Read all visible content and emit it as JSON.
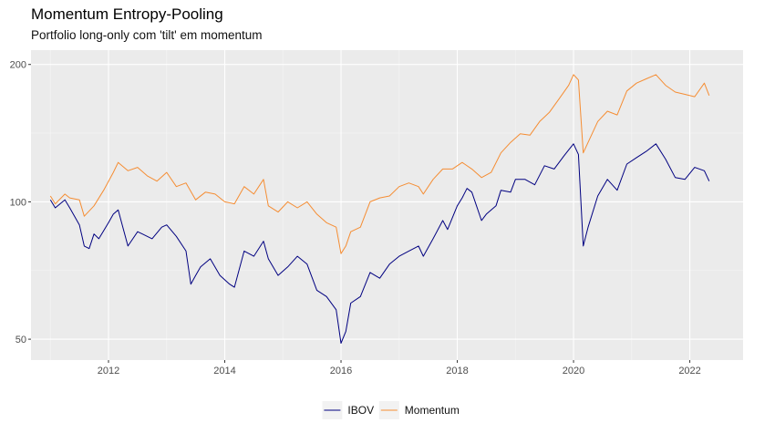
{
  "chart_data": {
    "type": "line",
    "title": "Momentum Entropy-Pooling",
    "subtitle": "Portfolio long-only com 'tilt' em momentum",
    "xlabel": "",
    "ylabel": "",
    "x_axis": {
      "type": "date",
      "range": [
        "2010-09",
        "2022-12"
      ],
      "ticks": [
        "2012",
        "2014",
        "2016",
        "2018",
        "2020",
        "2022"
      ]
    },
    "y_axis": {
      "scale": "log",
      "range": [
        45,
        215
      ],
      "ticks": [
        50,
        100,
        200
      ]
    },
    "grid": true,
    "legend": {
      "position": "bottom"
    },
    "series": [
      {
        "name": "IBOV",
        "color": "#000080",
        "points": [
          [
            "2011-01",
            101
          ],
          [
            "2011-02",
            97
          ],
          [
            "2011-04",
            101
          ],
          [
            "2011-05",
            97
          ],
          [
            "2011-07",
            89
          ],
          [
            "2011-08",
            80
          ],
          [
            "2011-09",
            79
          ],
          [
            "2011-10",
            85
          ],
          [
            "2011-11",
            83
          ],
          [
            "2012-01",
            90
          ],
          [
            "2012-02",
            94
          ],
          [
            "2012-03",
            96
          ],
          [
            "2012-05",
            80
          ],
          [
            "2012-07",
            86
          ],
          [
            "2012-08",
            85
          ],
          [
            "2012-10",
            83
          ],
          [
            "2012-12",
            88
          ],
          [
            "2013-01",
            89
          ],
          [
            "2013-03",
            84
          ],
          [
            "2013-05",
            78
          ],
          [
            "2013-06",
            66
          ],
          [
            "2013-07",
            69
          ],
          [
            "2013-08",
            72
          ],
          [
            "2013-10",
            75
          ],
          [
            "2013-12",
            69
          ],
          [
            "2014-02",
            66
          ],
          [
            "2014-03",
            65
          ],
          [
            "2014-05",
            78
          ],
          [
            "2014-07",
            76
          ],
          [
            "2014-09",
            82
          ],
          [
            "2014-10",
            75
          ],
          [
            "2014-12",
            69
          ],
          [
            "2015-02",
            72
          ],
          [
            "2015-04",
            76
          ],
          [
            "2015-06",
            73
          ],
          [
            "2015-08",
            64
          ],
          [
            "2015-10",
            62
          ],
          [
            "2015-12",
            58
          ],
          [
            "2016-01",
            49
          ],
          [
            "2016-02",
            52
          ],
          [
            "2016-03",
            60
          ],
          [
            "2016-05",
            62
          ],
          [
            "2016-07",
            70
          ],
          [
            "2016-09",
            68
          ],
          [
            "2016-11",
            73
          ],
          [
            "2017-01",
            76
          ],
          [
            "2017-03",
            78
          ],
          [
            "2017-05",
            80
          ],
          [
            "2017-06",
            76
          ],
          [
            "2017-08",
            83
          ],
          [
            "2017-10",
            91
          ],
          [
            "2017-11",
            87
          ],
          [
            "2018-01",
            98
          ],
          [
            "2018-02",
            102
          ],
          [
            "2018-03",
            107
          ],
          [
            "2018-04",
            105
          ],
          [
            "2018-06",
            91
          ],
          [
            "2018-07",
            94
          ],
          [
            "2018-09",
            98
          ],
          [
            "2018-10",
            106
          ],
          [
            "2018-12",
            105
          ],
          [
            "2019-01",
            112
          ],
          [
            "2019-03",
            112
          ],
          [
            "2019-05",
            109
          ],
          [
            "2019-07",
            120
          ],
          [
            "2019-09",
            118
          ],
          [
            "2019-11",
            126
          ],
          [
            "2019-12",
            130
          ],
          [
            "2020-01",
            134
          ],
          [
            "2020-02",
            127
          ],
          [
            "2020-03",
            80
          ],
          [
            "2020-04",
            88
          ],
          [
            "2020-06",
            103
          ],
          [
            "2020-08",
            112
          ],
          [
            "2020-10",
            106
          ],
          [
            "2020-12",
            121
          ],
          [
            "2021-02",
            125
          ],
          [
            "2021-04",
            129
          ],
          [
            "2021-06",
            134
          ],
          [
            "2021-08",
            124
          ],
          [
            "2021-10",
            113
          ],
          [
            "2021-12",
            112
          ],
          [
            "2022-02",
            119
          ],
          [
            "2022-04",
            117
          ],
          [
            "2022-05",
            111
          ]
        ]
      },
      {
        "name": "Momentum",
        "color": "#f58d33",
        "points": [
          [
            "2011-01",
            103
          ],
          [
            "2011-02",
            99
          ],
          [
            "2011-04",
            104
          ],
          [
            "2011-05",
            102
          ],
          [
            "2011-07",
            101
          ],
          [
            "2011-08",
            93
          ],
          [
            "2011-10",
            98
          ],
          [
            "2011-12",
            106
          ],
          [
            "2012-02",
            116
          ],
          [
            "2012-03",
            122
          ],
          [
            "2012-05",
            117
          ],
          [
            "2012-07",
            119
          ],
          [
            "2012-09",
            114
          ],
          [
            "2012-11",
            111
          ],
          [
            "2013-01",
            116
          ],
          [
            "2013-03",
            108
          ],
          [
            "2013-05",
            110
          ],
          [
            "2013-07",
            101
          ],
          [
            "2013-09",
            105
          ],
          [
            "2013-11",
            104
          ],
          [
            "2014-01",
            100
          ],
          [
            "2014-03",
            99
          ],
          [
            "2014-05",
            108
          ],
          [
            "2014-07",
            104
          ],
          [
            "2014-09",
            112
          ],
          [
            "2014-10",
            98
          ],
          [
            "2014-12",
            95
          ],
          [
            "2015-02",
            100
          ],
          [
            "2015-04",
            97
          ],
          [
            "2015-06",
            100
          ],
          [
            "2015-08",
            94
          ],
          [
            "2015-10",
            90
          ],
          [
            "2015-12",
            88
          ],
          [
            "2016-01",
            77
          ],
          [
            "2016-02",
            80
          ],
          [
            "2016-03",
            86
          ],
          [
            "2016-05",
            88
          ],
          [
            "2016-07",
            100
          ],
          [
            "2016-09",
            102
          ],
          [
            "2016-11",
            103
          ],
          [
            "2017-01",
            108
          ],
          [
            "2017-03",
            110
          ],
          [
            "2017-05",
            108
          ],
          [
            "2017-06",
            104
          ],
          [
            "2017-08",
            112
          ],
          [
            "2017-10",
            118
          ],
          [
            "2017-12",
            118
          ],
          [
            "2018-02",
            122
          ],
          [
            "2018-04",
            118
          ],
          [
            "2018-06",
            113
          ],
          [
            "2018-08",
            116
          ],
          [
            "2018-10",
            128
          ],
          [
            "2018-12",
            135
          ],
          [
            "2019-02",
            141
          ],
          [
            "2019-04",
            140
          ],
          [
            "2019-06",
            150
          ],
          [
            "2019-08",
            157
          ],
          [
            "2019-10",
            168
          ],
          [
            "2019-12",
            180
          ],
          [
            "2020-01",
            190
          ],
          [
            "2020-02",
            185
          ],
          [
            "2020-03",
            128
          ],
          [
            "2020-04",
            135
          ],
          [
            "2020-06",
            150
          ],
          [
            "2020-08",
            158
          ],
          [
            "2020-10",
            155
          ],
          [
            "2020-12",
            175
          ],
          [
            "2021-02",
            182
          ],
          [
            "2021-04",
            186
          ],
          [
            "2021-06",
            190
          ],
          [
            "2021-08",
            180
          ],
          [
            "2021-10",
            174
          ],
          [
            "2021-12",
            172
          ],
          [
            "2022-02",
            170
          ],
          [
            "2022-04",
            182
          ],
          [
            "2022-05",
            171
          ]
        ]
      }
    ]
  }
}
